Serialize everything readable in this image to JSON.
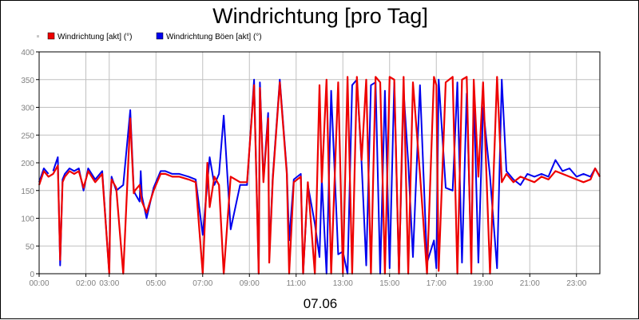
{
  "chart_data": {
    "type": "line",
    "title": "Windrichtung [pro Tag]",
    "xlabel": "07.06",
    "ylabel": "",
    "ylim": [
      0,
      400
    ],
    "y_ticks": [
      0,
      50,
      100,
      150,
      200,
      250,
      300,
      350,
      400
    ],
    "x_range_hours": [
      0,
      24
    ],
    "x_ticks": [
      {
        "label": "00:00",
        "hour": 0
      },
      {
        "label": "02:00",
        "hour": 2
      },
      {
        "label": "03:00",
        "hour": 3
      },
      {
        "label": "05:00",
        "hour": 5
      },
      {
        "label": "07:00",
        "hour": 7
      },
      {
        "label": "09:00",
        "hour": 9
      },
      {
        "label": "11:00",
        "hour": 11
      },
      {
        "label": "13:00",
        "hour": 13
      },
      {
        "label": "15:00",
        "hour": 15
      },
      {
        "label": "17:00",
        "hour": 17
      },
      {
        "label": "19:00",
        "hour": 19
      },
      {
        "label": "21:00",
        "hour": 21
      },
      {
        "label": "23:00",
        "hour": 23
      }
    ],
    "grid": true,
    "legend_position": "top-left",
    "series": [
      {
        "name": "Windrichtung Böen [akt] (°)",
        "color": "#0000ee",
        "x_hours": [
          0.0,
          0.2,
          0.4,
          0.6,
          0.8,
          0.9,
          1.0,
          1.1,
          1.3,
          1.5,
          1.7,
          1.9,
          2.1,
          2.4,
          2.7,
          3.0,
          3.05,
          3.1,
          3.3,
          3.6,
          3.9,
          4.05,
          4.1,
          4.3,
          4.35,
          4.4,
          4.6,
          4.9,
          5.2,
          5.4,
          5.7,
          6.0,
          6.4,
          6.7,
          7.0,
          7.3,
          7.5,
          7.7,
          7.9,
          8.2,
          8.6,
          8.9,
          9.2,
          9.4,
          9.45,
          9.6,
          9.8,
          9.85,
          10.0,
          10.3,
          10.6,
          10.7,
          10.9,
          11.2,
          11.3,
          11.5,
          11.8,
          12.0,
          12.1,
          12.3,
          12.5,
          12.8,
          13.0,
          13.2,
          13.4,
          13.6,
          13.8,
          14.0,
          14.2,
          14.4,
          14.6,
          14.8,
          15.0,
          15.2,
          15.4,
          15.6,
          15.8,
          16.0,
          16.3,
          16.6,
          16.9,
          17.0,
          17.1,
          17.4,
          17.7,
          17.9,
          18.1,
          18.3,
          18.5,
          18.6,
          18.8,
          19.0,
          19.3,
          19.6,
          19.8,
          20.0,
          20.3,
          20.6,
          20.9,
          21.2,
          21.5,
          21.8,
          22.1,
          22.4,
          22.7,
          23.0,
          23.3,
          23.6,
          23.8,
          24.0
        ],
        "values": [
          165,
          190,
          180,
          185,
          210,
          15,
          170,
          180,
          190,
          185,
          190,
          150,
          190,
          170,
          185,
          0,
          130,
          175,
          150,
          160,
          295,
          150,
          145,
          130,
          185,
          140,
          100,
          155,
          185,
          185,
          180,
          180,
          175,
          170,
          70,
          210,
          160,
          180,
          285,
          80,
          160,
          160,
          350,
          0,
          345,
          170,
          290,
          30,
          175,
          350,
          185,
          60,
          170,
          180,
          0,
          160,
          90,
          30,
          170,
          0,
          330,
          35,
          40,
          0,
          340,
          350,
          200,
          15,
          340,
          345,
          0,
          330,
          10,
          345,
          0,
          330,
          200,
          30,
          340,
          20,
          60,
          10,
          350,
          155,
          150,
          345,
          20,
          325,
          20,
          330,
          20,
          300,
          175,
          10,
          350,
          185,
          170,
          160,
          180,
          175,
          180,
          175,
          205,
          185,
          190,
          175,
          180,
          175,
          190,
          175
        ],
        "breaks_before_index": [
          3
        ]
      },
      {
        "name": "Windrichtung [akt] (°)",
        "color": "#ee0000",
        "x_hours": [
          0.0,
          0.2,
          0.4,
          0.6,
          0.8,
          0.9,
          1.0,
          1.1,
          1.3,
          1.5,
          1.7,
          1.9,
          2.1,
          2.4,
          2.7,
          3.0,
          3.05,
          3.1,
          3.3,
          3.6,
          3.9,
          4.05,
          4.1,
          4.3,
          4.4,
          4.6,
          4.9,
          5.2,
          5.4,
          5.7,
          6.0,
          6.4,
          6.7,
          7.0,
          7.2,
          7.3,
          7.5,
          7.7,
          7.9,
          8.2,
          8.6,
          8.9,
          9.2,
          9.4,
          9.45,
          9.6,
          9.8,
          9.85,
          10.0,
          10.3,
          10.6,
          10.7,
          10.9,
          11.2,
          11.3,
          11.5,
          11.8,
          12.0,
          12.1,
          12.3,
          12.5,
          12.8,
          13.0,
          13.2,
          13.4,
          13.6,
          13.8,
          14.0,
          14.2,
          14.4,
          14.6,
          14.8,
          15.0,
          15.2,
          15.4,
          15.6,
          15.8,
          16.0,
          16.3,
          16.6,
          16.9,
          17.0,
          17.1,
          17.4,
          17.7,
          17.9,
          18.1,
          18.3,
          18.5,
          18.6,
          18.8,
          19.0,
          19.3,
          19.6,
          19.8,
          20.0,
          20.3,
          20.6,
          20.9,
          21.2,
          21.5,
          21.8,
          22.1,
          22.4,
          22.7,
          23.0,
          23.3,
          23.6,
          23.8,
          24.0
        ],
        "values": [
          160,
          185,
          175,
          180,
          195,
          25,
          165,
          175,
          185,
          180,
          185,
          155,
          185,
          165,
          180,
          0,
          135,
          170,
          155,
          0,
          280,
          145,
          150,
          160,
          130,
          110,
          150,
          180,
          180,
          175,
          175,
          170,
          165,
          0,
          200,
          120,
          175,
          160,
          0,
          175,
          165,
          165,
          340,
          0,
          335,
          165,
          280,
          20,
          170,
          345,
          180,
          0,
          165,
          175,
          0,
          165,
          0,
          340,
          165,
          350,
          0,
          345,
          0,
          355,
          0,
          355,
          205,
          350,
          0,
          355,
          345,
          0,
          355,
          350,
          0,
          355,
          0,
          345,
          180,
          0,
          355,
          340,
          5,
          345,
          355,
          0,
          350,
          355,
          0,
          350,
          175,
          345,
          0,
          355,
          165,
          180,
          165,
          175,
          170,
          165,
          175,
          170,
          185,
          180,
          175,
          170,
          165,
          170,
          190,
          175
        ],
        "breaks_before_index": []
      }
    ]
  },
  "legend": {
    "marker_color": "#c8c8c8",
    "items": [
      {
        "label": "Windrichtung [akt] (°)",
        "color": "#ee0000"
      },
      {
        "label": "Windrichtung Böen [akt] (°)",
        "color": "#0000ee"
      }
    ]
  }
}
